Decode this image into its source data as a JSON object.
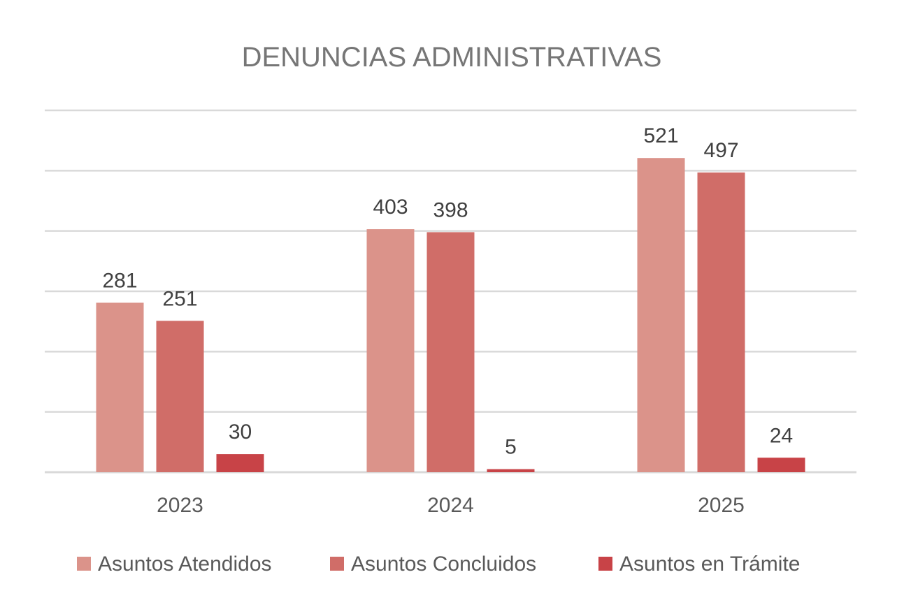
{
  "chart_data": {
    "type": "bar",
    "title": "DENUNCIAS ADMINISTRATIVAS",
    "categories": [
      "2023",
      "2024",
      "2025"
    ],
    "series": [
      {
        "name": "Asuntos Atendidos",
        "color": "#DB938A",
        "values": [
          281,
          403,
          521
        ]
      },
      {
        "name": "Asuntos Concluidos",
        "color": "#D06D68",
        "values": [
          251,
          398,
          497
        ]
      },
      {
        "name": "Asuntos en Trámite",
        "color": "#C84347",
        "values": [
          30,
          5,
          24
        ]
      }
    ],
    "xlabel": "",
    "ylabel": "",
    "ylim": [
      0,
      600
    ],
    "ytick_step": 100,
    "show_y_tick_labels": false,
    "grid": true,
    "legend_position": "bottom",
    "data_labels": true
  }
}
